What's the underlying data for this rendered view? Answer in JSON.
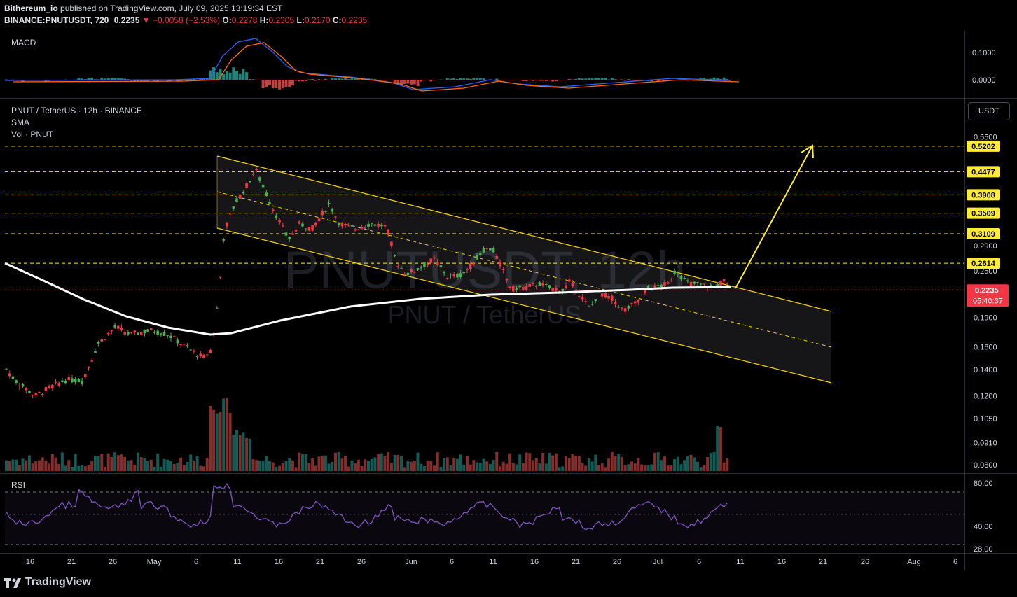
{
  "header": {
    "publisher": "Bithereum_io",
    "published_text": "published on TradingView.com, July 09, 2025 13:19:34 EST",
    "symbol_line_prefix": "BINANCE:PNUTUSDT, 720",
    "last": "0.2235",
    "change": "▼ −0.0058 (−2.53%)",
    "o_label": "O:",
    "o": "0.2278",
    "h_label": "H:",
    "h": "0.2305",
    "l_label": "L:",
    "l": "0.2170",
    "c_label": "C:",
    "c": "0.2235"
  },
  "legend": {
    "macd": "MACD",
    "main_title": "PNUT / TetherUS · 12h · BINANCE",
    "sma": "SMA",
    "vol": "Vol · PNUT",
    "rsi": "RSI"
  },
  "watermark": {
    "symbol": "PNUTUSDT, 12h",
    "name": "PNUT / TetherUS"
  },
  "currency_button": "USDT",
  "branding": "TradingView",
  "colors": {
    "up": "#26a69a",
    "down": "#ef5350",
    "candle_up": "#4caf50",
    "candle_down": "#f23645",
    "sma": "#ffffff",
    "channel": "#f5d50d",
    "level": "#ffeb3b",
    "rsi": "#7e57c2",
    "macd_line": "#2962ff",
    "signal_line": "#ff6d00"
  },
  "chart_data": [
    {
      "type": "candlestick",
      "title": "PNUT / TetherUS · 12h · BINANCE",
      "price_axis_labels": [
        "0.5500",
        "0.2900",
        "0.2500",
        "0.1900",
        "0.1600",
        "0.1400",
        "0.1200",
        "0.1050",
        "0.0910",
        "0.0800"
      ],
      "highlighted_levels": [
        "0.5202",
        "0.4477",
        "0.3908",
        "0.3509",
        "0.3109",
        "0.2614"
      ],
      "current_price": "0.2235",
      "countdown": "05:40:37",
      "x_tick_labels": [
        "16",
        "21",
        "26",
        "May",
        "6",
        "11",
        "16",
        "21",
        "26",
        "Jun",
        "6",
        "11",
        "16",
        "21",
        "26",
        "Jul",
        "6",
        "11",
        "16",
        "21",
        "26",
        "Aug",
        "6"
      ],
      "annotations": [
        "descending channel",
        "arrow toward 0.5202"
      ]
    },
    {
      "type": "bar",
      "title": "MACD",
      "axis_labels": [
        "0.1000",
        "0.0000"
      ]
    },
    {
      "type": "line",
      "title": "RSI",
      "axis_labels": [
        "80.00",
        "40.00",
        "28.00"
      ]
    }
  ]
}
